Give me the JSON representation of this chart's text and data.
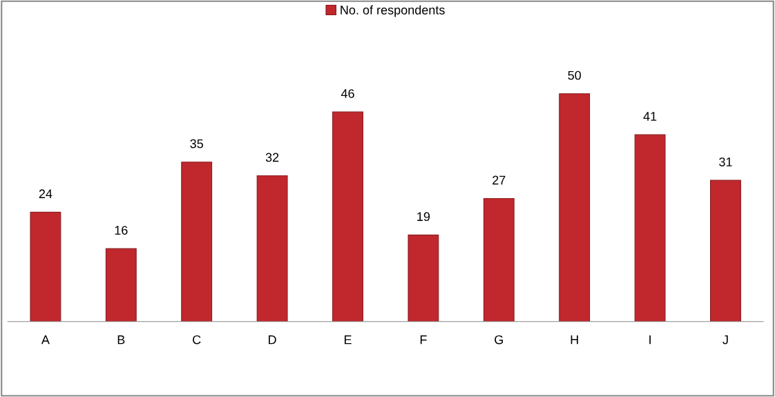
{
  "chart_data": {
    "type": "bar",
    "categories": [
      "A",
      "B",
      "C",
      "D",
      "E",
      "F",
      "G",
      "H",
      "I",
      "J"
    ],
    "series": [
      {
        "name": "No. of respondents",
        "color": "#c0282d",
        "values": [
          24,
          16,
          35,
          32,
          46,
          19,
          27,
          50,
          41,
          31
        ]
      }
    ],
    "data_labels": true,
    "legend": "top",
    "grid": false
  }
}
